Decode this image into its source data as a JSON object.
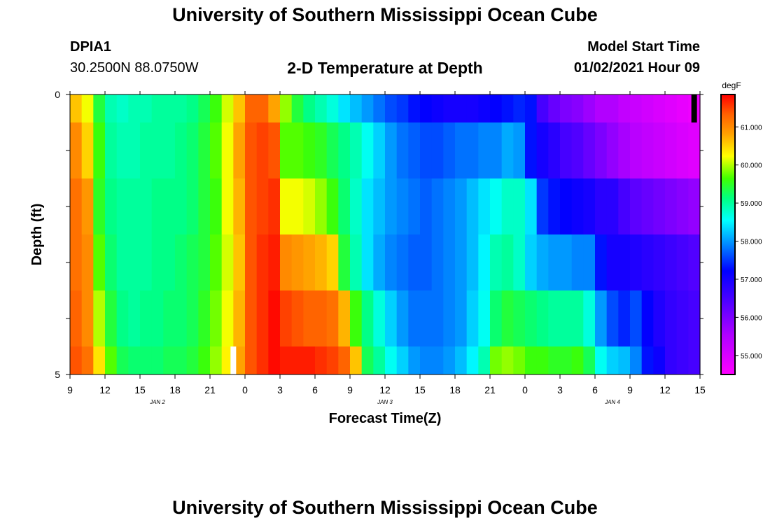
{
  "header": {
    "title": "University of Southern Mississippi Ocean Cube",
    "station_id": "DPIA1",
    "coordinates": "30.2500N 88.0750W",
    "start_label": "Model Start Time",
    "start_value": "01/02/2021 Hour 09",
    "footer_title": "University of Southern Mississippi Ocean Cube"
  },
  "chart_data": {
    "type": "heatmap",
    "title": "2-D Temperature at Depth",
    "xlabel": "Forecast Time(Z)",
    "ylabel": "Depth (ft)",
    "x_ticks": [
      "9",
      "12",
      "15",
      "18",
      "21",
      "0",
      "3",
      "6",
      "9",
      "12",
      "15",
      "18",
      "21",
      "0",
      "3",
      "6",
      "9",
      "12",
      "15"
    ],
    "x_tick_hours": [
      0,
      3,
      6,
      9,
      12,
      15,
      18,
      21,
      24,
      27,
      30,
      33,
      36,
      39,
      42,
      45,
      48,
      51,
      54
    ],
    "date_labels": [
      {
        "label": "JAN 2",
        "hour": 7.5
      },
      {
        "label": "JAN 3",
        "hour": 27
      },
      {
        "label": "JAN 4",
        "hour": 46.5
      }
    ],
    "y_ticks": [
      "0",
      "5"
    ],
    "y_range": [
      0,
      5
    ],
    "x_range_hours": [
      0,
      54
    ],
    "colorbar": {
      "unit": "degF",
      "min": 54.5,
      "max": 61.85,
      "ticks": [
        "61.000",
        "60.000",
        "59.000",
        "58.000",
        "57.000",
        "56.000",
        "55.000"
      ],
      "tick_values": [
        61,
        60,
        59,
        58,
        57,
        56,
        55
      ]
    },
    "depth_layers": [
      "0-0.5 ft",
      "0.5-1.5 ft",
      "1.5-2.5 ft",
      "2.5-3.5 ft",
      "3.5-4.5 ft",
      "4.5-5 ft"
    ],
    "rows": [
      [
        60.6,
        60.2,
        59.4,
        58.9,
        58.8,
        58.9,
        58.9,
        59.0,
        59.0,
        59.0,
        59.1,
        59.3,
        59.6,
        60.1,
        60.6,
        61.3,
        61.3,
        60.8,
        59.9,
        59.4,
        59.1,
        58.9,
        58.7,
        58.4,
        58.2,
        58.0,
        57.8,
        57.6,
        57.5,
        57.3,
        57.2,
        57.1,
        57.0,
        57.0,
        57.0,
        57.1,
        57.2,
        57.3,
        57.4,
        57.3,
        56.5,
        56.2,
        56.0,
        55.9,
        55.7,
        55.5,
        55.5,
        55.3,
        55.2,
        55.1,
        55.0,
        54.9,
        54.8,
        54.7
      ],
      [
        61.0,
        60.5,
        59.6,
        59.0,
        58.9,
        58.9,
        59.0,
        59.0,
        59.0,
        59.1,
        59.2,
        59.4,
        59.7,
        60.2,
        60.8,
        61.4,
        61.5,
        61.4,
        59.7,
        59.7,
        59.6,
        59.5,
        59.3,
        59.1,
        58.9,
        58.6,
        58.3,
        58.0,
        57.8,
        57.7,
        57.6,
        57.6,
        57.7,
        57.8,
        57.8,
        57.9,
        57.9,
        58.1,
        58.0,
        57.3,
        57.0,
        56.8,
        56.5,
        56.4,
        56.2,
        56.0,
        55.8,
        55.6,
        55.4,
        55.3,
        55.2,
        55.1,
        55.0,
        54.9
      ],
      [
        61.2,
        60.9,
        59.5,
        59.1,
        59.0,
        59.0,
        59.0,
        59.1,
        59.1,
        59.1,
        59.2,
        59.4,
        59.6,
        60.2,
        60.7,
        61.4,
        61.5,
        61.6,
        60.2,
        60.2,
        60.1,
        59.9,
        59.6,
        59.2,
        58.8,
        58.4,
        58.2,
        58.0,
        57.9,
        57.8,
        57.7,
        57.8,
        57.9,
        58.0,
        58.2,
        58.4,
        58.6,
        58.8,
        58.8,
        58.4,
        57.5,
        57.3,
        57.2,
        57.1,
        57.0,
        56.8,
        56.8,
        56.5,
        56.3,
        56.2,
        56.1,
        56.0,
        55.9,
        55.8
      ],
      [
        61.2,
        61.0,
        59.7,
        59.2,
        59.0,
        59.0,
        59.0,
        59.1,
        59.1,
        59.2,
        59.3,
        59.4,
        59.7,
        60.1,
        60.6,
        61.4,
        61.6,
        61.7,
        61.0,
        60.9,
        60.8,
        60.7,
        60.5,
        59.4,
        58.9,
        58.4,
        58.1,
        57.9,
        57.8,
        57.7,
        57.7,
        57.8,
        57.9,
        58.0,
        58.2,
        58.5,
        58.9,
        59.0,
        58.8,
        58.3,
        58.1,
        58.0,
        58.0,
        57.9,
        57.9,
        57.3,
        57.0,
        57.0,
        56.9,
        56.8,
        56.7,
        56.6,
        56.5,
        56.4
      ],
      [
        61.3,
        61.0,
        60.0,
        59.4,
        59.1,
        59.0,
        59.1,
        59.1,
        59.2,
        59.2,
        59.3,
        59.5,
        59.8,
        60.2,
        60.7,
        61.4,
        61.6,
        61.8,
        61.5,
        61.4,
        61.3,
        61.3,
        61.2,
        60.7,
        59.6,
        59.1,
        58.7,
        58.3,
        58.0,
        57.8,
        57.8,
        57.8,
        57.9,
        58.0,
        58.3,
        58.6,
        59.2,
        59.4,
        59.3,
        59.2,
        59.1,
        59.0,
        59.0,
        59.0,
        58.7,
        58.0,
        57.6,
        57.4,
        57.6,
        57.2,
        56.9,
        56.7,
        56.6,
        56.5
      ],
      [
        61.4,
        61.2,
        60.4,
        59.7,
        59.3,
        59.2,
        59.2,
        59.2,
        59.3,
        59.3,
        59.4,
        59.6,
        59.9,
        60.3,
        60.8,
        61.4,
        61.6,
        61.8,
        61.7,
        61.7,
        61.7,
        61.6,
        61.5,
        61.3,
        60.6,
        59.3,
        59.0,
        58.6,
        58.3,
        58.0,
        57.9,
        57.9,
        58.0,
        58.2,
        58.5,
        58.9,
        59.8,
        59.9,
        59.8,
        59.6,
        59.6,
        59.5,
        59.5,
        59.6,
        59.3,
        58.6,
        58.3,
        58.2,
        57.9,
        57.3,
        57.1,
        56.7,
        56.6,
        56.5
      ]
    ],
    "missing_marks": [
      {
        "row": 5,
        "hour": 14.0,
        "color": "#ffffff"
      },
      {
        "row": 0,
        "hour": 53.5,
        "color": "#000000"
      }
    ]
  }
}
